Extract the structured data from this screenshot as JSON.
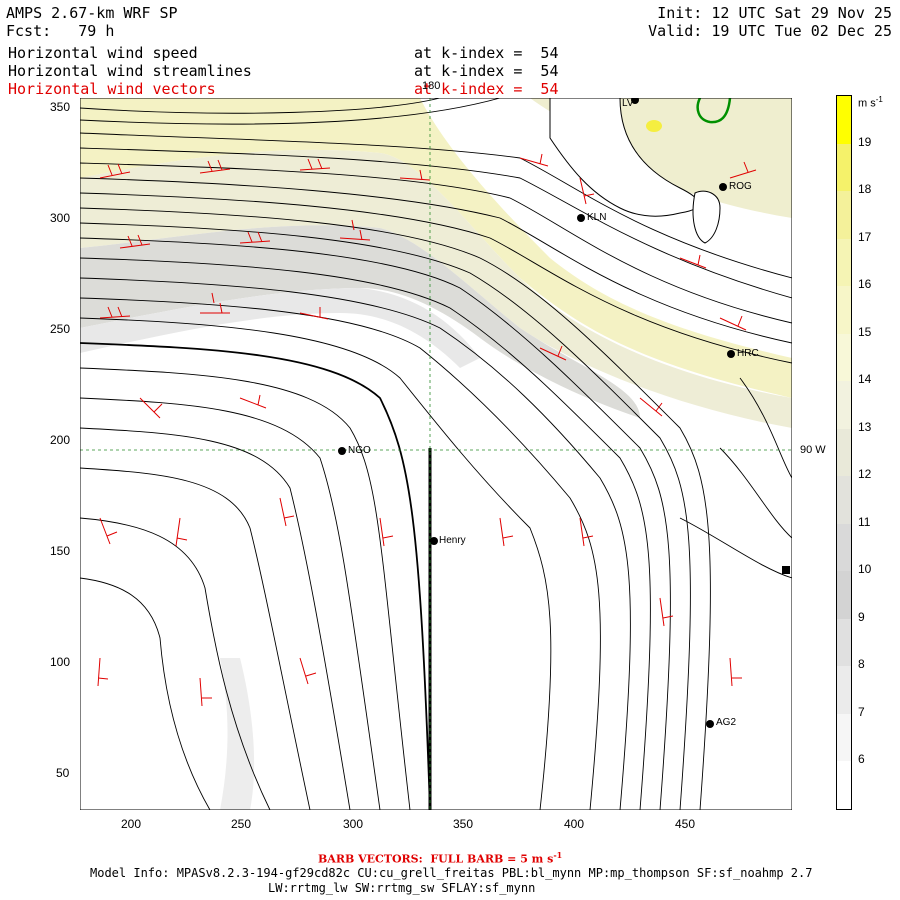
{
  "header": {
    "model": "AMPS 2.67-km WRF SP",
    "forecast": "Fcst:   79 h",
    "init": "Init: 12 UTC Sat 29 Nov 25",
    "valid": "Valid: 19 UTC Tue 02 Dec 25",
    "fields": [
      {
        "name": "Horizontal wind speed",
        "level": "at k-index =  54"
      },
      {
        "name": "Horizontal wind streamlines",
        "level": "at k-index =  54"
      },
      {
        "name": "Horizontal wind vectors",
        "level": "at k-index =  54"
      }
    ]
  },
  "map": {
    "x_ticks": [
      "200",
      "250",
      "300",
      "350",
      "400",
      "450"
    ],
    "y_ticks": [
      "50",
      "100",
      "150",
      "200",
      "250",
      "300",
      "350"
    ],
    "lon_label_top": "180",
    "lat_label_right": "90 W",
    "stations": [
      {
        "name": "NGO"
      },
      {
        "name": "Henry"
      },
      {
        "name": "KLN"
      },
      {
        "name": "ROG"
      },
      {
        "name": "HRC"
      },
      {
        "name": "AG2"
      },
      {
        "name": "LV"
      }
    ]
  },
  "colorbar": {
    "unit": "m s",
    "unit_exp": "-1",
    "labels": [
      "19",
      "18",
      "17",
      "16",
      "15",
      "14",
      "13",
      "12",
      "11",
      "10",
      "9",
      "8",
      "7",
      "6"
    ],
    "colors": [
      "#ffff00",
      "#f5f26a",
      "#f4f19a",
      "#f5f4b4",
      "#f7f6c8",
      "#f8f8d8",
      "#f2f2df",
      "#e9e9d9",
      "#e2e2dc",
      "#d9d9d9",
      "#d3d3d3",
      "#e0e0e0",
      "#ebebeb",
      "#f6f6f6",
      "#ffffff"
    ]
  },
  "footer": {
    "barb_prefix": "BARB VECTORS:  FULL BARB = 5 m s",
    "barb_exp": "-1",
    "model_info": "Model Info: MPASv8.2.3-194-gf29cd82c CU:cu_grell_freitas PBL:bl_mynn MP:mp_thompson SF:sf_noahmp 2.7",
    "model_info2": "LW:rrtmg_lw SW:rrtmg_sw SFLAY:sf_mynn"
  }
}
